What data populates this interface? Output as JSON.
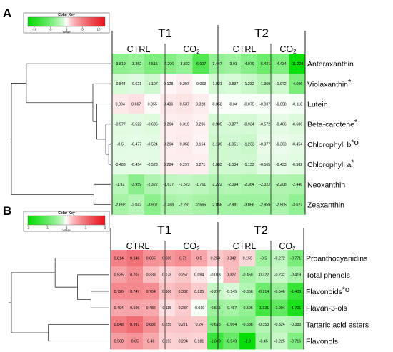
{
  "panels": [
    {
      "letter": "A",
      "key": {
        "title": "Color Key",
        "subtitle": "Value",
        "ticks": [
          "-10",
          "-5",
          "0",
          "5",
          "10"
        ],
        "min": -12,
        "max": 12
      },
      "groups": [
        {
          "label": "T1"
        },
        {
          "label": "T2"
        }
      ],
      "subgroups": [
        {
          "label": "CTRL"
        },
        {
          "label": "CO",
          "sub": "2"
        },
        {
          "label": "CTRL"
        },
        {
          "label": "CO",
          "sub": "2"
        }
      ],
      "rows": [
        {
          "label": "Anteraxanthin",
          "mark": "",
          "values": [
            -3.819,
            -3.352,
            -4.515,
            -4.206,
            -3.322,
            -6.907,
            -3.447,
            -3.01,
            -4.079,
            -5.421,
            -4.434,
            -11.228
          ]
        },
        {
          "label": "Violaxanthin",
          "mark": "*",
          "values": [
            -0.844,
            -0.621,
            -1.107,
            0.128,
            0.297,
            -0.063,
            -1.021,
            -0.837,
            -1.232,
            -1.959,
            -1.072,
            -4.696
          ]
        },
        {
          "label": "Lutein",
          "mark": "",
          "values": [
            0.394,
            0.667,
            0.055,
            0.436,
            0.537,
            0.328,
            -0.058,
            -0.04,
            -0.075,
            -0.087,
            -0.058,
            -0.118
          ]
        },
        {
          "label": "Beta-carotene",
          "mark": "*",
          "values": [
            -0.577,
            -0.522,
            -0.635,
            0.264,
            0.319,
            0.206,
            -0.905,
            -0.877,
            -0.934,
            -0.572,
            -0.466,
            -0.686
          ]
        },
        {
          "label": "Chlorophyll b",
          "mark": "*o",
          "values": [
            -0.5,
            -0.477,
            -0.524,
            0.264,
            0.358,
            0.164,
            -1.139,
            -1.051,
            -1.233,
            -0.377,
            -0.303,
            -0.454
          ]
        },
        {
          "label": "Chlorophyll a",
          "mark": "*",
          "values": [
            -0.488,
            -0.454,
            -0.523,
            0.284,
            0.297,
            0.271,
            -1.083,
            -1.034,
            -1.133,
            -0.505,
            -0.433,
            -0.582
          ]
        },
        {
          "label": "Neoxanthin",
          "mark": "",
          "values": [
            -1.92,
            -3.959,
            -2.322,
            -1.637,
            -1.523,
            -1.761,
            -2.222,
            -2.094,
            -2.364,
            -2.322,
            -2.208,
            -2.446
          ]
        },
        {
          "label": "Zeaxanthin",
          "mark": "",
          "values": [
            -2.692,
            -2.042,
            -3.907,
            -2.468,
            -2.291,
            -2.665,
            -2.856,
            -2.881,
            -3.056,
            -2.959,
            -2.505,
            -3.627
          ]
        }
      ]
    },
    {
      "letter": "B",
      "key": {
        "title": "Color Key",
        "subtitle": "Value",
        "ticks": [
          "-2",
          "-1",
          "0",
          "1",
          "2"
        ],
        "min": -2,
        "max": 2
      },
      "groups": [
        {
          "label": "T1"
        },
        {
          "label": "T2"
        }
      ],
      "subgroups": [
        {
          "label": "CTRL"
        },
        {
          "label": "CO",
          "sub": "2"
        },
        {
          "label": "CTRL"
        },
        {
          "label": "CO",
          "sub": "2"
        }
      ],
      "rows": [
        {
          "label": "Proanthocyanidins",
          "mark": "",
          "values": [
            0.814,
            0.946,
            0.665,
            0.609,
            0.71,
            0.5,
            0.253,
            0.342,
            0.159,
            -0.5,
            -0.272,
            -0.771
          ]
        },
        {
          "label": "Total phenols",
          "mark": "",
          "values": [
            0.535,
            0.707,
            0.338,
            0.178,
            0.257,
            0.094,
            -0.013,
            0.327,
            -0.459,
            -0.322,
            -0.232,
            -0.419
          ]
        },
        {
          "label": "Flavonoids",
          "mark": "*o",
          "values": [
            0.726,
            0.747,
            0.704,
            0.306,
            0.382,
            0.225,
            -0.247,
            -0.145,
            -0.356,
            -0.914,
            -0.546,
            -1.408
          ]
        },
        {
          "label": "Flavan-3-ols",
          "mark": "",
          "values": [
            0.494,
            0.506,
            0.482,
            0.115,
            0.237,
            -0.019,
            -0.525,
            -0.457,
            -0.596,
            -1.321,
            -1.004,
            -1.701
          ]
        },
        {
          "label": "Tartaric acid esters",
          "mark": "",
          "values": [
            0.848,
            0.997,
            0.682,
            0.255,
            0.271,
            0.24,
            -0.675,
            -0.664,
            -0.686,
            -0.353,
            -0.324,
            -0.383
          ]
        },
        {
          "label": "Flavonols",
          "mark": "",
          "values": [
            0.568,
            0.65,
            0.48,
            0.193,
            0.204,
            0.181,
            -1.348,
            -0.949,
            -1.9,
            -0.45,
            -0.225,
            -0.716
          ]
        }
      ]
    }
  ],
  "colors": {
    "negative": "#00dc00",
    "neutral": "#ffffff",
    "positive": "#e8121c",
    "grid": "#222222"
  },
  "chart_data": [
    {
      "type": "heatmap",
      "title": "",
      "columns": [
        "T1 CTRL",
        "T1 CTRL",
        "T1 CTRL",
        "T1 CO2",
        "T1 CO2",
        "T1 CO2",
        "T2 CTRL",
        "T2 CTRL",
        "T2 CTRL",
        "T2 CO2",
        "T2 CO2",
        "T2 CO2"
      ],
      "rows": [
        "Anteraxanthin",
        "Violaxanthin",
        "Lutein",
        "Beta-carotene",
        "Chlorophyll b",
        "Chlorophyll a",
        "Neoxanthin",
        "Zeaxanthin"
      ],
      "color_range": [
        -12,
        12
      ]
    },
    {
      "type": "heatmap",
      "title": "",
      "columns": [
        "T1 CTRL",
        "T1 CTRL",
        "T1 CTRL",
        "T1 CO2",
        "T1 CO2",
        "T1 CO2",
        "T2 CTRL",
        "T2 CTRL",
        "T2 CTRL",
        "T2 CO2",
        "T2 CO2",
        "T2 CO2"
      ],
      "rows": [
        "Proanthocyanidins",
        "Total phenols",
        "Flavonoids",
        "Flavan-3-ols",
        "Tartaric acid esters",
        "Flavonols"
      ],
      "color_range": [
        -2,
        2
      ]
    }
  ]
}
